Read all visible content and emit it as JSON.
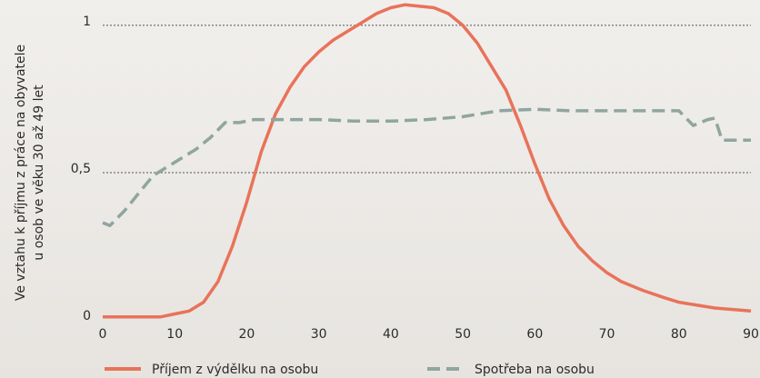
{
  "chart_data": {
    "type": "line",
    "ylabel": [
      "Ve vztahu k příjmu z práce na obyvatele",
      "u osob ve věku 30 až 49 let"
    ],
    "xlim": [
      0,
      90
    ],
    "xticks": [
      0,
      10,
      20,
      30,
      40,
      50,
      60,
      70,
      80,
      90
    ],
    "ylim": [
      0,
      1.08
    ],
    "yticks": [
      0,
      {
        "value": 0.5,
        "label": "0,5"
      },
      1
    ],
    "grid": true,
    "legend": "bottom",
    "series": [
      {
        "name": "Příjem z výdělku na osobu",
        "color": "#e8735a",
        "dash": false,
        "x": [
          0,
          5,
          8,
          10,
          12,
          14,
          16,
          18,
          20,
          22,
          24,
          26,
          28,
          30,
          32,
          34,
          36,
          38,
          40,
          42,
          44,
          46,
          48,
          50,
          52,
          54,
          56,
          58,
          60,
          62,
          64,
          66,
          68,
          70,
          72,
          75,
          78,
          80,
          85,
          90
        ],
        "values": [
          0.01,
          0.01,
          0.01,
          0.02,
          0.03,
          0.06,
          0.13,
          0.25,
          0.4,
          0.57,
          0.7,
          0.79,
          0.86,
          0.91,
          0.95,
          0.98,
          1.01,
          1.04,
          1.06,
          1.07,
          1.065,
          1.06,
          1.04,
          1.0,
          0.94,
          0.86,
          0.78,
          0.66,
          0.53,
          0.41,
          0.32,
          0.25,
          0.2,
          0.16,
          0.13,
          0.1,
          0.075,
          0.06,
          0.04,
          0.03
        ]
      },
      {
        "name": "Spotřeba na osobu",
        "color": "#8fa5a0",
        "dash": true,
        "x": [
          0,
          1,
          3,
          5,
          7,
          9,
          11,
          13,
          15,
          17,
          19,
          21,
          25,
          30,
          35,
          40,
          45,
          50,
          55,
          60,
          65,
          70,
          75,
          80,
          82,
          84,
          85,
          86,
          90
        ],
        "values": [
          0.33,
          0.32,
          0.37,
          0.43,
          0.49,
          0.52,
          0.55,
          0.58,
          0.62,
          0.67,
          0.67,
          0.68,
          0.68,
          0.68,
          0.675,
          0.675,
          0.68,
          0.69,
          0.71,
          0.715,
          0.71,
          0.71,
          0.71,
          0.71,
          0.66,
          0.68,
          0.685,
          0.61,
          0.61
        ]
      }
    ]
  }
}
